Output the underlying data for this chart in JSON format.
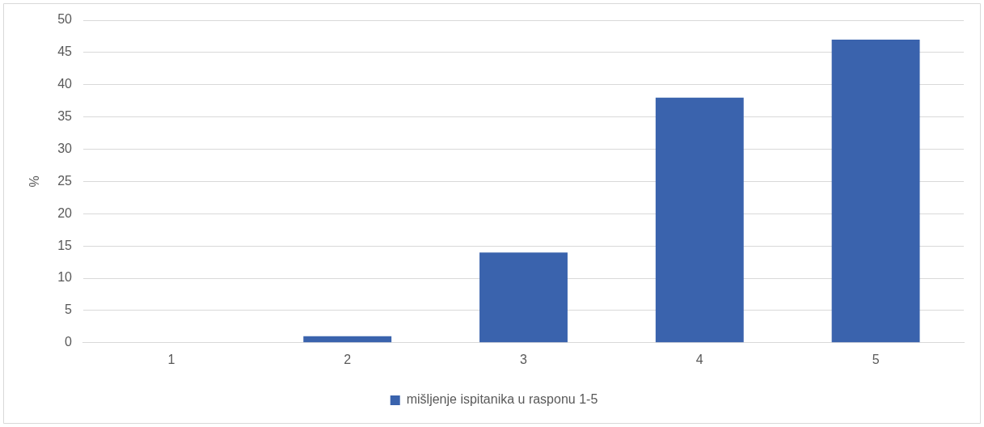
{
  "chart_data": {
    "type": "bar",
    "ylabel": "%",
    "categories": [
      "1",
      "2",
      "3",
      "4",
      "5"
    ],
    "series": [
      {
        "name": "mišljenje ispitanika u rasponu 1-5",
        "color": "#3a63ad",
        "values": [
          0,
          1,
          14,
          38,
          47
        ]
      }
    ],
    "ylim": [
      0,
      50
    ],
    "yticks": [
      0,
      5,
      10,
      15,
      20,
      25,
      30,
      35,
      40,
      45,
      50
    ],
    "grid": "y",
    "legend": "bottom"
  }
}
